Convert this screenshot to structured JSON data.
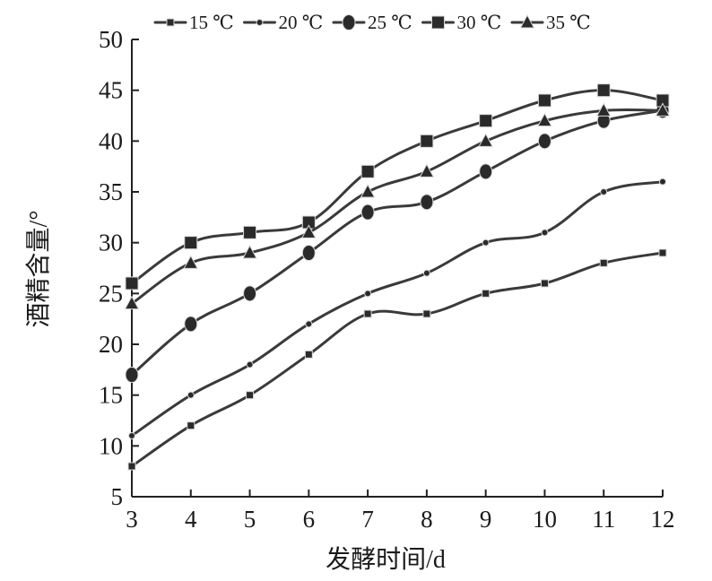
{
  "chart_data": {
    "type": "line",
    "title": "",
    "xlabel": "发酵时间/d",
    "ylabel": "酒精含量/°",
    "x": [
      3,
      4,
      5,
      6,
      7,
      8,
      9,
      10,
      11,
      12
    ],
    "xlim": [
      3,
      12
    ],
    "ylim": [
      5,
      50
    ],
    "xticks": [
      "3",
      "4",
      "5",
      "6",
      "7",
      "8",
      "9",
      "10",
      "11",
      "12"
    ],
    "yticks": [
      "5",
      "10",
      "15",
      "20",
      "25",
      "30",
      "35",
      "40",
      "45",
      "50"
    ],
    "grid": false,
    "legend_position": "top",
    "series": [
      {
        "name": "15 ℃",
        "marker": "small-square",
        "values": [
          8,
          12,
          15,
          19,
          23,
          23,
          25,
          26,
          28,
          29
        ]
      },
      {
        "name": "20 ℃",
        "marker": "dot",
        "values": [
          11,
          15,
          18,
          22,
          25,
          27,
          30,
          31,
          35,
          36
        ]
      },
      {
        "name": "25 ℃",
        "marker": "circle",
        "values": [
          17,
          22,
          25,
          29,
          33,
          34,
          37,
          40,
          42,
          43
        ]
      },
      {
        "name": "30 ℃",
        "marker": "square",
        "values": [
          26,
          30,
          31,
          32,
          37,
          40,
          42,
          44,
          45,
          44
        ]
      },
      {
        "name": "35 ℃",
        "marker": "triangle",
        "values": [
          24,
          28,
          29,
          31,
          35,
          37,
          40,
          42,
          43,
          43
        ]
      }
    ]
  }
}
